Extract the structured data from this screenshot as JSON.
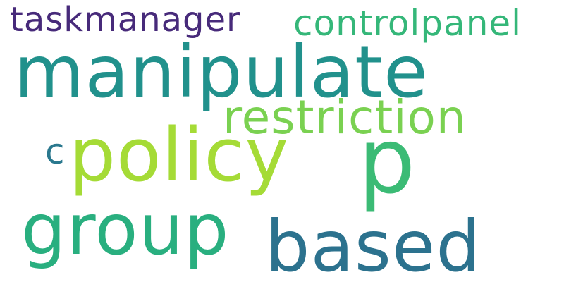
{
  "words": {
    "taskmanager": {
      "text": "taskmanager",
      "color": "#472a7a"
    },
    "controlpanel": {
      "text": "controlpanel",
      "color": "#35b779"
    },
    "manipulate": {
      "text": "manipulate",
      "color": "#21918c"
    },
    "restriction": {
      "text": "restriction",
      "color": "#7ad151"
    },
    "c": {
      "text": "c",
      "color": "#2a788e"
    },
    "policy": {
      "text": "policy",
      "color": "#a5db36"
    },
    "p": {
      "text": "p",
      "color": "#3bbb75"
    },
    "group": {
      "text": "group",
      "color": "#29af7f"
    },
    "based": {
      "text": "based",
      "color": "#2c728e"
    }
  }
}
